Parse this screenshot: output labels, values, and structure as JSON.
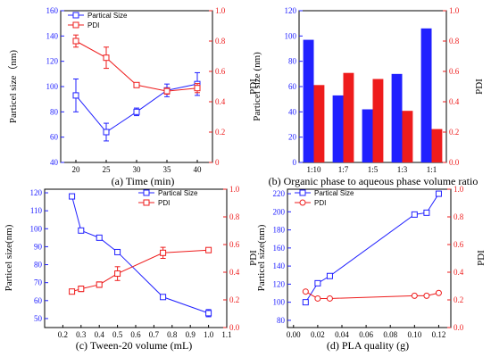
{
  "colors": {
    "blue": "#2020ff",
    "red": "#ee1c1c",
    "axis": "#000000"
  },
  "chart_data": [
    {
      "id": "a",
      "type": "line",
      "caption": "(a) Time (min)",
      "legend": [
        "Partical Size",
        "PDI"
      ],
      "ylabel_left": "Particel size（nm)",
      "ylabel_right": "PDI",
      "xlim": [
        17.5,
        42.5
      ],
      "xticks": [
        20,
        25,
        30,
        35,
        40
      ],
      "ylim_left": [
        40,
        160
      ],
      "yticks_left": [
        40,
        60,
        80,
        100,
        120,
        140,
        160
      ],
      "ylim_right": [
        0,
        1.0
      ],
      "yticks_right": [
        "0",
        "0.2",
        "0.4",
        "0.6",
        "0.8",
        "1.0"
      ],
      "x": [
        20,
        25,
        30,
        35,
        40
      ],
      "series": [
        {
          "name": "Partical Size",
          "axis": "left",
          "color": "blue",
          "marker": "square",
          "values": [
            93,
            64,
            80,
            97,
            102
          ],
          "errors": [
            13,
            7,
            3,
            5,
            9
          ]
        },
        {
          "name": "PDI",
          "axis": "right",
          "color": "red",
          "marker": "square",
          "values": [
            0.8,
            0.69,
            0.51,
            0.47,
            0.49
          ],
          "errors": [
            0.04,
            0.07,
            0.01,
            0.02,
            0.03
          ]
        }
      ]
    },
    {
      "id": "b",
      "type": "bar",
      "caption": "(b)  Organic phase to aqueous phase volume ratio",
      "ylabel_left": "Particel size (nm)",
      "ylabel_right": "PDI",
      "categories": [
        "1:10",
        "1:7",
        "1:5",
        "1:3",
        "1:1"
      ],
      "ylim_left": [
        0,
        120
      ],
      "yticks_left": [
        0,
        20,
        40,
        60,
        80,
        100,
        120
      ],
      "ylim_right": [
        0,
        1.0
      ],
      "yticks_right": [
        "0.0",
        "0.2",
        "0.4",
        "0.6",
        "0.8",
        "1.0"
      ],
      "series": [
        {
          "axis": "left",
          "color": "blue",
          "values": [
            97,
            53,
            42,
            70,
            106
          ]
        },
        {
          "axis": "right",
          "color": "red",
          "values": [
            0.51,
            0.59,
            0.55,
            0.34,
            0.22
          ]
        }
      ]
    },
    {
      "id": "c",
      "type": "line",
      "caption": "(c) Tween-20 volume (mL)",
      "legend": [
        "Partical Size",
        "PDI"
      ],
      "ylabel_left": "Particel size(nm)",
      "ylabel_right": "PDI",
      "xlim": [
        0.1,
        1.1
      ],
      "xticks": [
        "0.2",
        "0.3",
        "0.4",
        "0.5",
        "0.6",
        "0.7",
        "0.8",
        "0.9",
        "1.0",
        "1.1"
      ],
      "ylim_left": [
        45,
        122
      ],
      "yticks_left": [
        50,
        60,
        70,
        80,
        90,
        100,
        110,
        120
      ],
      "ylim_right": [
        0,
        1.0
      ],
      "yticks_right": [
        "0.0",
        "0.2",
        "0.4",
        "0.6",
        "0.8",
        "1.0"
      ],
      "x": [
        0.25,
        0.3,
        0.4,
        0.5,
        0.75,
        1.0
      ],
      "series": [
        {
          "name": "Partical Size",
          "axis": "left",
          "color": "blue",
          "marker": "square",
          "values": [
            118,
            99,
            95,
            87,
            62,
            53
          ],
          "errors": [
            0.5,
            0.5,
            0.5,
            0.5,
            0.5,
            2
          ]
        },
        {
          "name": "PDI",
          "axis": "right",
          "color": "red",
          "marker": "square",
          "values": [
            0.26,
            0.28,
            0.31,
            0.39,
            0.54,
            0.56
          ],
          "errors": [
            0.01,
            0.02,
            0.02,
            0.05,
            0.04,
            0.01
          ]
        }
      ]
    },
    {
      "id": "d",
      "type": "line",
      "caption": "(d)  PLA quality (g)",
      "legend": [
        "Partical Size",
        "PDI"
      ],
      "ylabel_left": "Particel size(nm)",
      "ylabel_right": "PDI",
      "xlim": [
        -0.005,
        0.13
      ],
      "xticks": [
        "0.00",
        "0.02",
        "0.04",
        "0.06",
        "0.08",
        "0.10",
        "0.12"
      ],
      "ylim_left": [
        72,
        225
      ],
      "yticks_left": [
        80,
        100,
        120,
        140,
        160,
        180,
        200,
        220
      ],
      "ylim_right": [
        0,
        1.0
      ],
      "yticks_right": [
        "0.0",
        "0.2",
        "0.4",
        "0.6",
        "0.8",
        "1.0"
      ],
      "x": [
        0.01,
        0.02,
        0.03,
        0.1,
        0.11,
        0.12
      ],
      "series": [
        {
          "name": "Partical Size",
          "axis": "left",
          "color": "blue",
          "marker": "square",
          "values": [
            100,
            121,
            129,
            197,
            199,
            220
          ]
        },
        {
          "name": "PDI",
          "axis": "right",
          "color": "red",
          "marker": "circle",
          "values": [
            0.26,
            0.21,
            0.21,
            0.23,
            0.23,
            0.25
          ]
        }
      ]
    }
  ]
}
